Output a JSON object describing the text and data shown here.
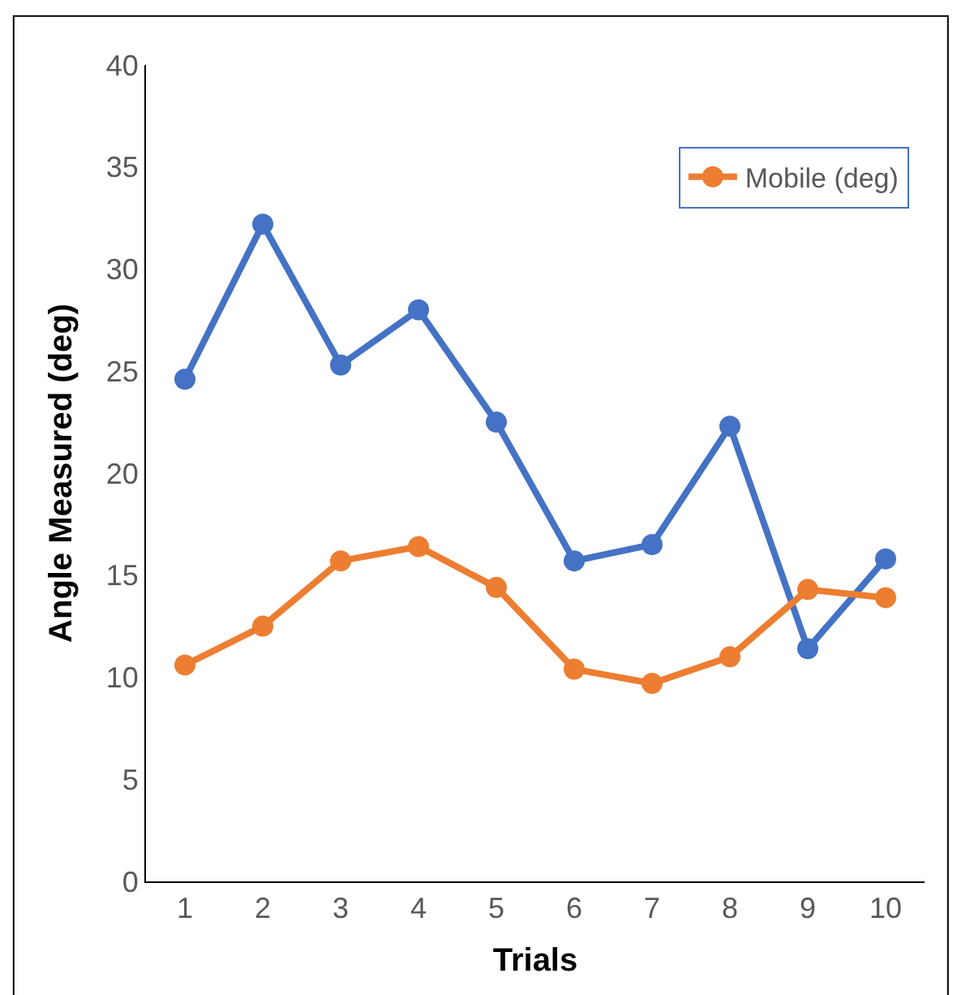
{
  "chart_data": {
    "type": "line",
    "xlabel": "Trials",
    "ylabel": "Angle Measured (deg)",
    "categories": [
      "1",
      "2",
      "3",
      "4",
      "5",
      "6",
      "7",
      "8",
      "9",
      "10"
    ],
    "series": [
      {
        "color": "#4472c4",
        "values": [
          24.6,
          32.2,
          25.3,
          28.0,
          22.5,
          15.7,
          16.5,
          22.3,
          11.4,
          15.8
        ]
      },
      {
        "name": "Mobile (deg)",
        "color": "#ed7d31",
        "values": [
          10.6,
          12.5,
          15.7,
          16.4,
          14.4,
          10.4,
          9.7,
          11.0,
          14.3,
          13.9
        ]
      }
    ],
    "ylim": [
      0,
      40
    ],
    "yticks": [
      0,
      5,
      10,
      15,
      20,
      25,
      30,
      35,
      40
    ],
    "grid": false,
    "legend": "top right",
    "marker": "circle",
    "line_style": "solid"
  }
}
